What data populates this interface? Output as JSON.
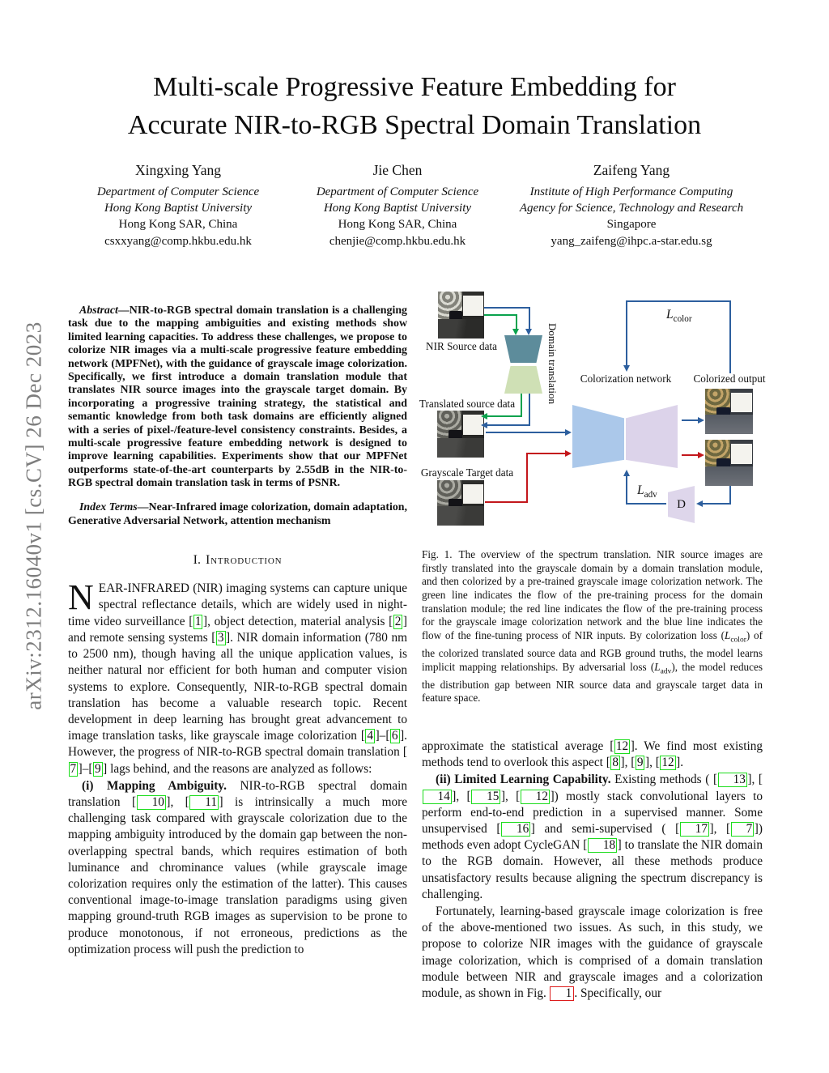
{
  "sidebar": {
    "arxiv": "arXiv:2312.16040v1 [cs.CV] 26 Dec 2023"
  },
  "title": {
    "line1": "Multi-scale Progressive Feature Embedding for",
    "line2": "Accurate NIR-to-RGB Spectral Domain Translation"
  },
  "authors": [
    {
      "name": "Xingxing Yang",
      "affil1": "Department of Computer Science",
      "affil2": "Hong Kong Baptist University",
      "city": "Hong Kong SAR, China",
      "email": "csxxyang@comp.hkbu.edu.hk"
    },
    {
      "name": "Jie Chen",
      "affil1": "Department of Computer Science",
      "affil2": "Hong Kong Baptist University",
      "city": "Hong Kong SAR, China",
      "email": "chenjie@comp.hkbu.edu.hk"
    },
    {
      "name": "Zaifeng Yang",
      "affil1": "Institute of High Performance Computing",
      "affil2": "Agency for Science, Technology and Research",
      "city": "Singapore",
      "email": "yang_zaifeng@ihpc.a-star.edu.sg"
    }
  ],
  "abstract": {
    "label": "Abstract",
    "text": "—NIR-to-RGB spectral domain translation is a challenging task due to the mapping ambiguities and existing methods show limited learning capacities. To address these challenges, we propose to colorize NIR images via a multi-scale progressive feature embedding network (MPFNet), with the guidance of grayscale image colorization. Specifically, we first introduce a domain translation module that translates NIR source images into the grayscale target domain. By incorporating a progressive training strategy, the statistical and semantic knowledge from both task domains are efficiently aligned with a series of pixel-/feature-level consistency constraints. Besides, a multi-scale progressive feature embedding network is designed to improve learning capabilities. Experiments show that our MPFNet outperforms state-of-the-art counterparts by 2.55dB in the NIR-to-RGB spectral domain translation task in terms of PSNR."
  },
  "index_terms": {
    "label": "Index Terms",
    "text": "—Near-Infrared image colorization, domain adaptation, Generative Adversarial Network, attention mechanism"
  },
  "section": {
    "num": "I.",
    "title": "Introduction"
  },
  "paragraphs": {
    "p1_dropcap": "N",
    "p1": "EAR-INFRARED (NIR) imaging systems can capture unique spectral reflectance details, which are widely used in night-time video surveillance [[1]], object detection, material analysis [[2]] and remote sensing systems [[3]]. NIR domain information (780 nm to 2500 nm), though having all the unique application values, is neither natural nor efficient for both human and computer vision systems to explore. Consequently, NIR-to-RGB spectral domain translation has become a valuable research topic. Recent development in deep learning has brought great advancement to image translation tasks, like grayscale image colorization [[4]]–[[6]]. However, the progress of NIR-to-RGB spectral domain translation [[7]]–[[9]] lags behind, and the reasons are analyzed as follows:",
    "p2_lead": "(i) Mapping Ambiguity.",
    "p2": " NIR-to-RGB spectral domain translation [[10]], [[11]] is intrinsically a much more challenging task compared with grayscale colorization due to the mapping ambiguity introduced by the domain gap between the non-overlapping spectral bands, which requires estimation of both luminance and chrominance values (while grayscale image colorization requires only the estimation of the latter). This causes conventional image-to-image translation paradigms using given mapping ground-truth RGB images as supervision to be prone to produce monotonous, if not erroneous, predictions as the optimization process will push the prediction to",
    "p3": "approximate the statistical average [[12]]. We find most existing methods tend to overlook this aspect [[8]], [[9]], [[12]].",
    "p4_lead": "(ii) Limited Learning Capability.",
    "p4": " Existing methods ( [[13]], [[14]], [[15]], [[12]]) mostly stack convolutional layers to perform end-to-end prediction in a supervised manner. Some unsupervised [[16]] and semi-supervised ( [[17]], [[7]]) methods even adopt CycleGAN [[18]] to translate the NIR domain to the RGB domain. However, all these methods produce unsatisfactory results because aligning the spectrum discrepancy is challenging.",
    "p5": "Fortunately, learning-based grayscale image colorization is free of the above-mentioned two issues. As such, in this study, we propose to colorize NIR images with the guidance of grayscale image colorization, which is comprised of a domain translation module between NIR and grayscale images and a colorization module, as shown in Fig. {{1}}. Specifically, our"
  },
  "figure": {
    "caption_label": "Fig. 1.",
    "caption": "The overview of the spectrum translation. NIR source images are firstly translated into the grayscale domain by a domain translation module, and then colorized by a pre-trained grayscale image colorization network. The green line indicates the flow of the pre-training process for the domain translation module; the red line indicates the flow of the pre-training process for the grayscale image colorization network and the blue line indicates the flow of the fine-tuning process of NIR inputs. By colorization loss ($L_{color}$) of the colorized translated source data and RGB ground truths, the model learns implicit mapping relationships. By adversarial loss ($L_{adv}$), the model reduces the distribution gap between NIR source data and grayscale target data in feature space.",
    "labels": {
      "nir_source": "NIR Source data",
      "translated_source": "Translated source data",
      "grayscale_target": "Grayscale Target data",
      "domain_translation": "Domain translation",
      "colorization_network": "Colorization network",
      "colorized_output": "Colorized output",
      "loss_color_main": "L",
      "loss_color_sub": "color",
      "loss_adv_main": "L",
      "loss_adv_sub": "adv",
      "discriminator": "D"
    },
    "colors": {
      "encoder_teal": "#5d8c9b",
      "decoder_green": "#cfe0b5",
      "colorization_encoder_blue": "#abc8ea",
      "colorization_decoder_lavender": "#dcd3ea",
      "line_blue": "#2d5f9e",
      "line_green": "#0aa24d",
      "line_red": "#c3171c",
      "cite_box_green": "#1ddd1d",
      "figref_box_red": "#dd1d1d"
    }
  }
}
